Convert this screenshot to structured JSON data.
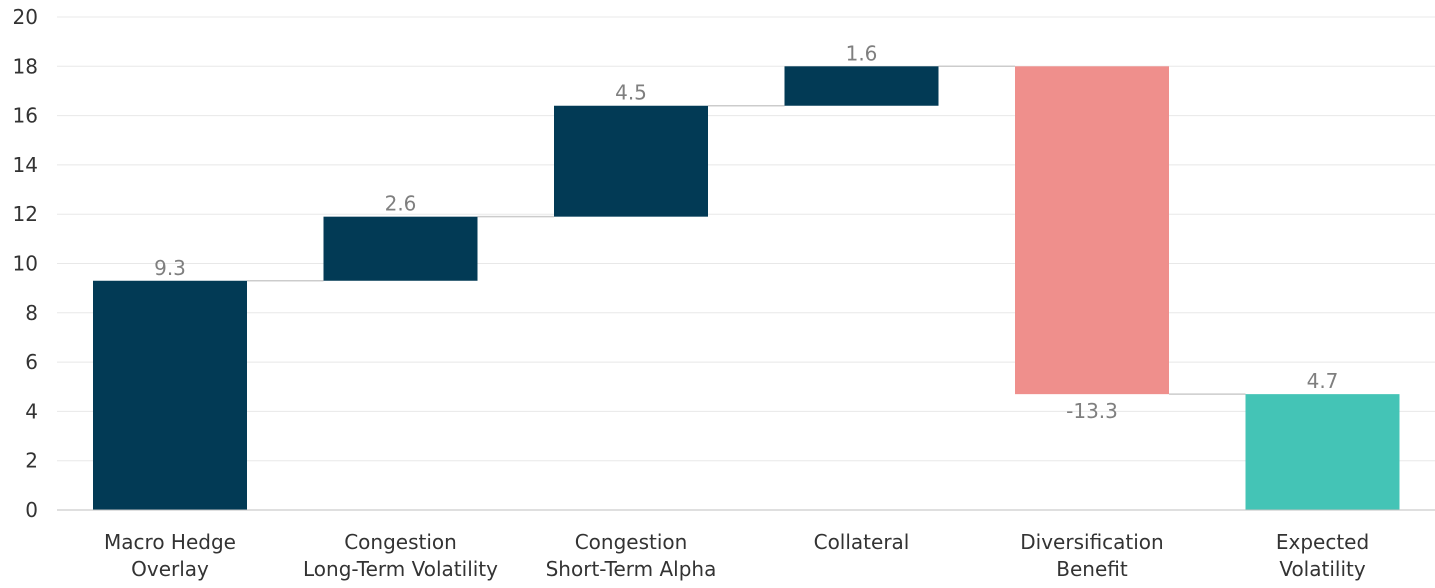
{
  "chart_data": {
    "type": "bar",
    "subtype": "waterfall",
    "title": "",
    "xlabel": "",
    "ylabel": "",
    "ylim": [
      0,
      20
    ],
    "yticks": [
      0,
      2,
      4,
      6,
      8,
      10,
      12,
      14,
      16,
      18,
      20
    ],
    "grid": true,
    "legend": "none",
    "categories": [
      [
        "Macro Hedge",
        "Overlay"
      ],
      [
        "Congestion",
        "Long-Term Volatility"
      ],
      [
        "Congestion",
        "Short-Term Alpha"
      ],
      [
        "Collateral"
      ],
      [
        "Diversification",
        "Benefit"
      ],
      [
        "Expected",
        "Volatility"
      ]
    ],
    "steps": [
      {
        "value": 9.3,
        "label": "9.3",
        "kind": "increase",
        "start": 0
      },
      {
        "value": 2.6,
        "label": "2.6",
        "kind": "increase",
        "start": 9.3
      },
      {
        "value": 4.5,
        "label": "4.5",
        "kind": "increase",
        "start": 11.9
      },
      {
        "value": 1.6,
        "label": "1.6",
        "kind": "increase",
        "start": 16.4
      },
      {
        "value": -13.3,
        "label": "-13.3",
        "kind": "decrease",
        "start": 18.0
      },
      {
        "value": 4.7,
        "label": "4.7",
        "kind": "total",
        "start": 0
      }
    ],
    "colors": {
      "increase": "#023a55",
      "decrease": "#ef8f8c",
      "total": "#44c4b6",
      "grid": "#e8e8e8",
      "axis": "#bfbfbf",
      "connector": "#cccccc"
    }
  }
}
